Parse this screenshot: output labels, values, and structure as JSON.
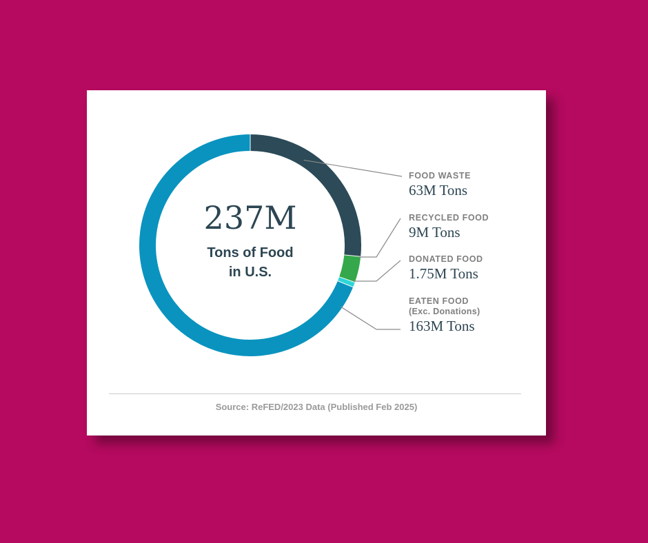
{
  "center": {
    "total": "237M",
    "line1": "Tons of Food",
    "line2": "in U.S."
  },
  "colors": {
    "background": "#b50a5f",
    "food_waste": "#2c4a57",
    "recycled_food": "#34a84a",
    "donated_food": "#2fd6d6",
    "eaten_food": "#0a93bf"
  },
  "chart_data": {
    "type": "pie",
    "style": "donut",
    "unit": "M Tons",
    "categories": [
      "FOOD WASTE",
      "RECYCLED FOOD",
      "DONATED FOOD",
      "EATEN FOOD"
    ],
    "values": [
      63,
      9,
      1.75,
      163
    ],
    "total": 237,
    "legend_placement": "right",
    "labels": [
      {
        "name": "FOOD WASTE",
        "sub": "",
        "value": "63M Tons"
      },
      {
        "name": "RECYCLED FOOD",
        "sub": "",
        "value": "9M Tons"
      },
      {
        "name": "DONATED FOOD",
        "sub": "",
        "value": "1.75M Tons"
      },
      {
        "name": "EATEN FOOD",
        "sub": "(Exc. Donations)",
        "value": "163M Tons"
      }
    ]
  },
  "source": "Source: ReFED/2023 Data (Published Feb 2025)"
}
